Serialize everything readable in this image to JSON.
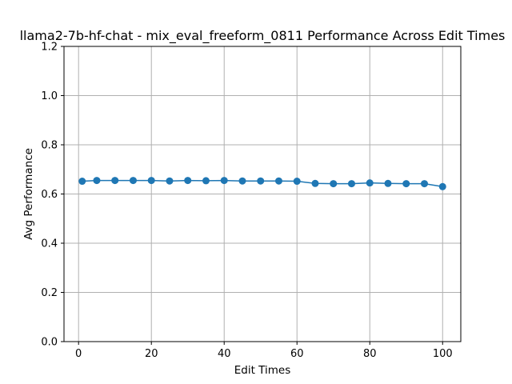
{
  "chart_data": {
    "type": "line",
    "title": "llama2-7b-hf-chat - mix_eval_freeform_0811 Performance Across Edit Times",
    "xlabel": "Edit Times",
    "ylabel": "Avg Performance",
    "xlim": [
      -4,
      105
    ],
    "ylim": [
      0.0,
      1.2
    ],
    "xticks": [
      "0",
      "20",
      "40",
      "60",
      "80",
      "100"
    ],
    "yticks": [
      "0.0",
      "0.2",
      "0.4",
      "0.6",
      "0.8",
      "1.0",
      "1.2"
    ],
    "grid": true,
    "series": [
      {
        "color": "#1f77b4",
        "marker": "circle",
        "x": [
          1,
          5,
          10,
          15,
          20,
          25,
          30,
          35,
          40,
          45,
          50,
          55,
          60,
          65,
          70,
          75,
          80,
          85,
          90,
          95,
          100
        ],
        "y": [
          0.652,
          0.655,
          0.655,
          0.655,
          0.655,
          0.653,
          0.655,
          0.654,
          0.655,
          0.653,
          0.653,
          0.653,
          0.652,
          0.643,
          0.642,
          0.642,
          0.645,
          0.643,
          0.642,
          0.642,
          0.63
        ]
      }
    ]
  }
}
